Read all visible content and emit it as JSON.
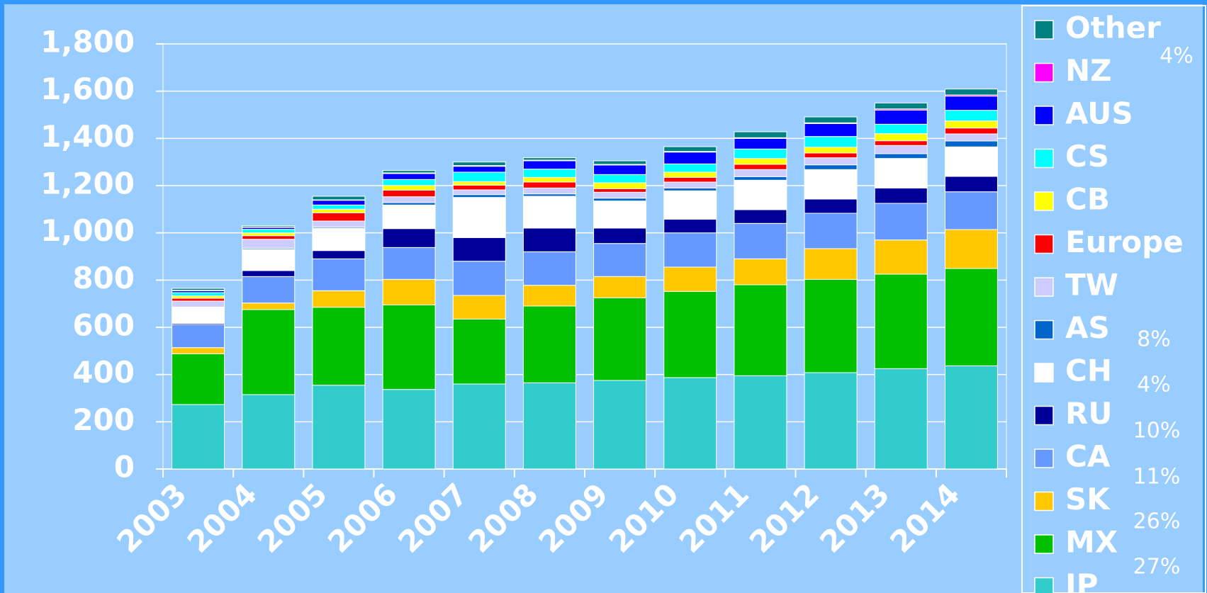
{
  "chart_data": {
    "type": "stacked_bar",
    "categories": [
      "2003",
      "2004",
      "2005",
      "2006",
      "2007",
      "2008",
      "2009",
      "2010",
      "2011",
      "2012",
      "2013",
      "2014"
    ],
    "series": [
      {
        "name": "JP",
        "color": "#33cccc",
        "values": [
          273,
          315,
          355,
          337,
          360,
          365,
          375,
          387,
          395,
          408,
          425,
          437
        ]
      },
      {
        "name": "MX",
        "color": "#00c000",
        "values": [
          215,
          360,
          330,
          358,
          275,
          325,
          350,
          365,
          385,
          395,
          400,
          412
        ]
      },
      {
        "name": "SK",
        "color": "#ffc800",
        "values": [
          26,
          28,
          70,
          108,
          100,
          88,
          90,
          103,
          110,
          130,
          145,
          165
        ]
      },
      {
        "name": "CA",
        "color": "#6699ff",
        "values": [
          98,
          112,
          135,
          135,
          145,
          142,
          140,
          145,
          150,
          150,
          155,
          160
        ]
      },
      {
        "name": "RU",
        "color": "#000099",
        "values": [
          5,
          25,
          35,
          80,
          100,
          100,
          65,
          58,
          58,
          60,
          65,
          65
        ]
      },
      {
        "name": "CH",
        "color": "#ffffff",
        "values": [
          66,
          90,
          95,
          100,
          170,
          135,
          115,
          120,
          125,
          125,
          125,
          125
        ]
      },
      {
        "name": "AS",
        "color": "#0066cc",
        "values": [
          3,
          5,
          5,
          10,
          12,
          10,
          12,
          12,
          15,
          20,
          20,
          25
        ]
      },
      {
        "name": "TW",
        "color": "#ccccff",
        "values": [
          25,
          38,
          25,
          25,
          20,
          25,
          25,
          25,
          30,
          30,
          35,
          30
        ]
      },
      {
        "name": "Europe",
        "color": "#ff0000",
        "values": [
          12,
          15,
          35,
          28,
          20,
          25,
          15,
          20,
          22,
          20,
          20,
          25
        ]
      },
      {
        "name": "CB",
        "color": "#ffff00",
        "values": [
          10,
          12,
          15,
          20,
          15,
          20,
          25,
          22,
          25,
          25,
          30,
          30
        ]
      },
      {
        "name": "CS",
        "color": "#00ffff",
        "values": [
          14,
          15,
          18,
          25,
          40,
          35,
          35,
          35,
          40,
          45,
          40,
          45
        ]
      },
      {
        "name": "AUS",
        "color": "#0000ff",
        "values": [
          8,
          8,
          20,
          25,
          25,
          35,
          40,
          50,
          45,
          55,
          60,
          60
        ]
      },
      {
        "name": "NZ",
        "color": "#ff00ff",
        "values": [
          2,
          2,
          2,
          3,
          3,
          3,
          3,
          3,
          3,
          3,
          5,
          5
        ]
      },
      {
        "name": "Other",
        "color": "#008080",
        "values": [
          8,
          5,
          15,
          10,
          15,
          10,
          15,
          20,
          25,
          25,
          25,
          25
        ]
      }
    ],
    "annotations": [
      "4%",
      "8%",
      "4%",
      "10%",
      "11%",
      "26%",
      "27%"
    ],
    "ylim": [
      0,
      1800
    ],
    "yticks": [
      0,
      {
        "value": 200,
        "label": "200"
      },
      {
        "value": 400,
        "label": "400"
      },
      {
        "value": 600,
        "label": "600"
      },
      {
        "value": 800,
        "label": "800"
      },
      {
        "value": 1000,
        "label": "1,000"
      },
      {
        "value": 1200,
        "label": "1,200"
      },
      {
        "value": 1400,
        "label": "1,400"
      },
      {
        "value": 1600,
        "label": "1,600"
      },
      {
        "value": 1800,
        "label": "1,800"
      }
    ],
    "grid": true,
    "legend": "right"
  }
}
